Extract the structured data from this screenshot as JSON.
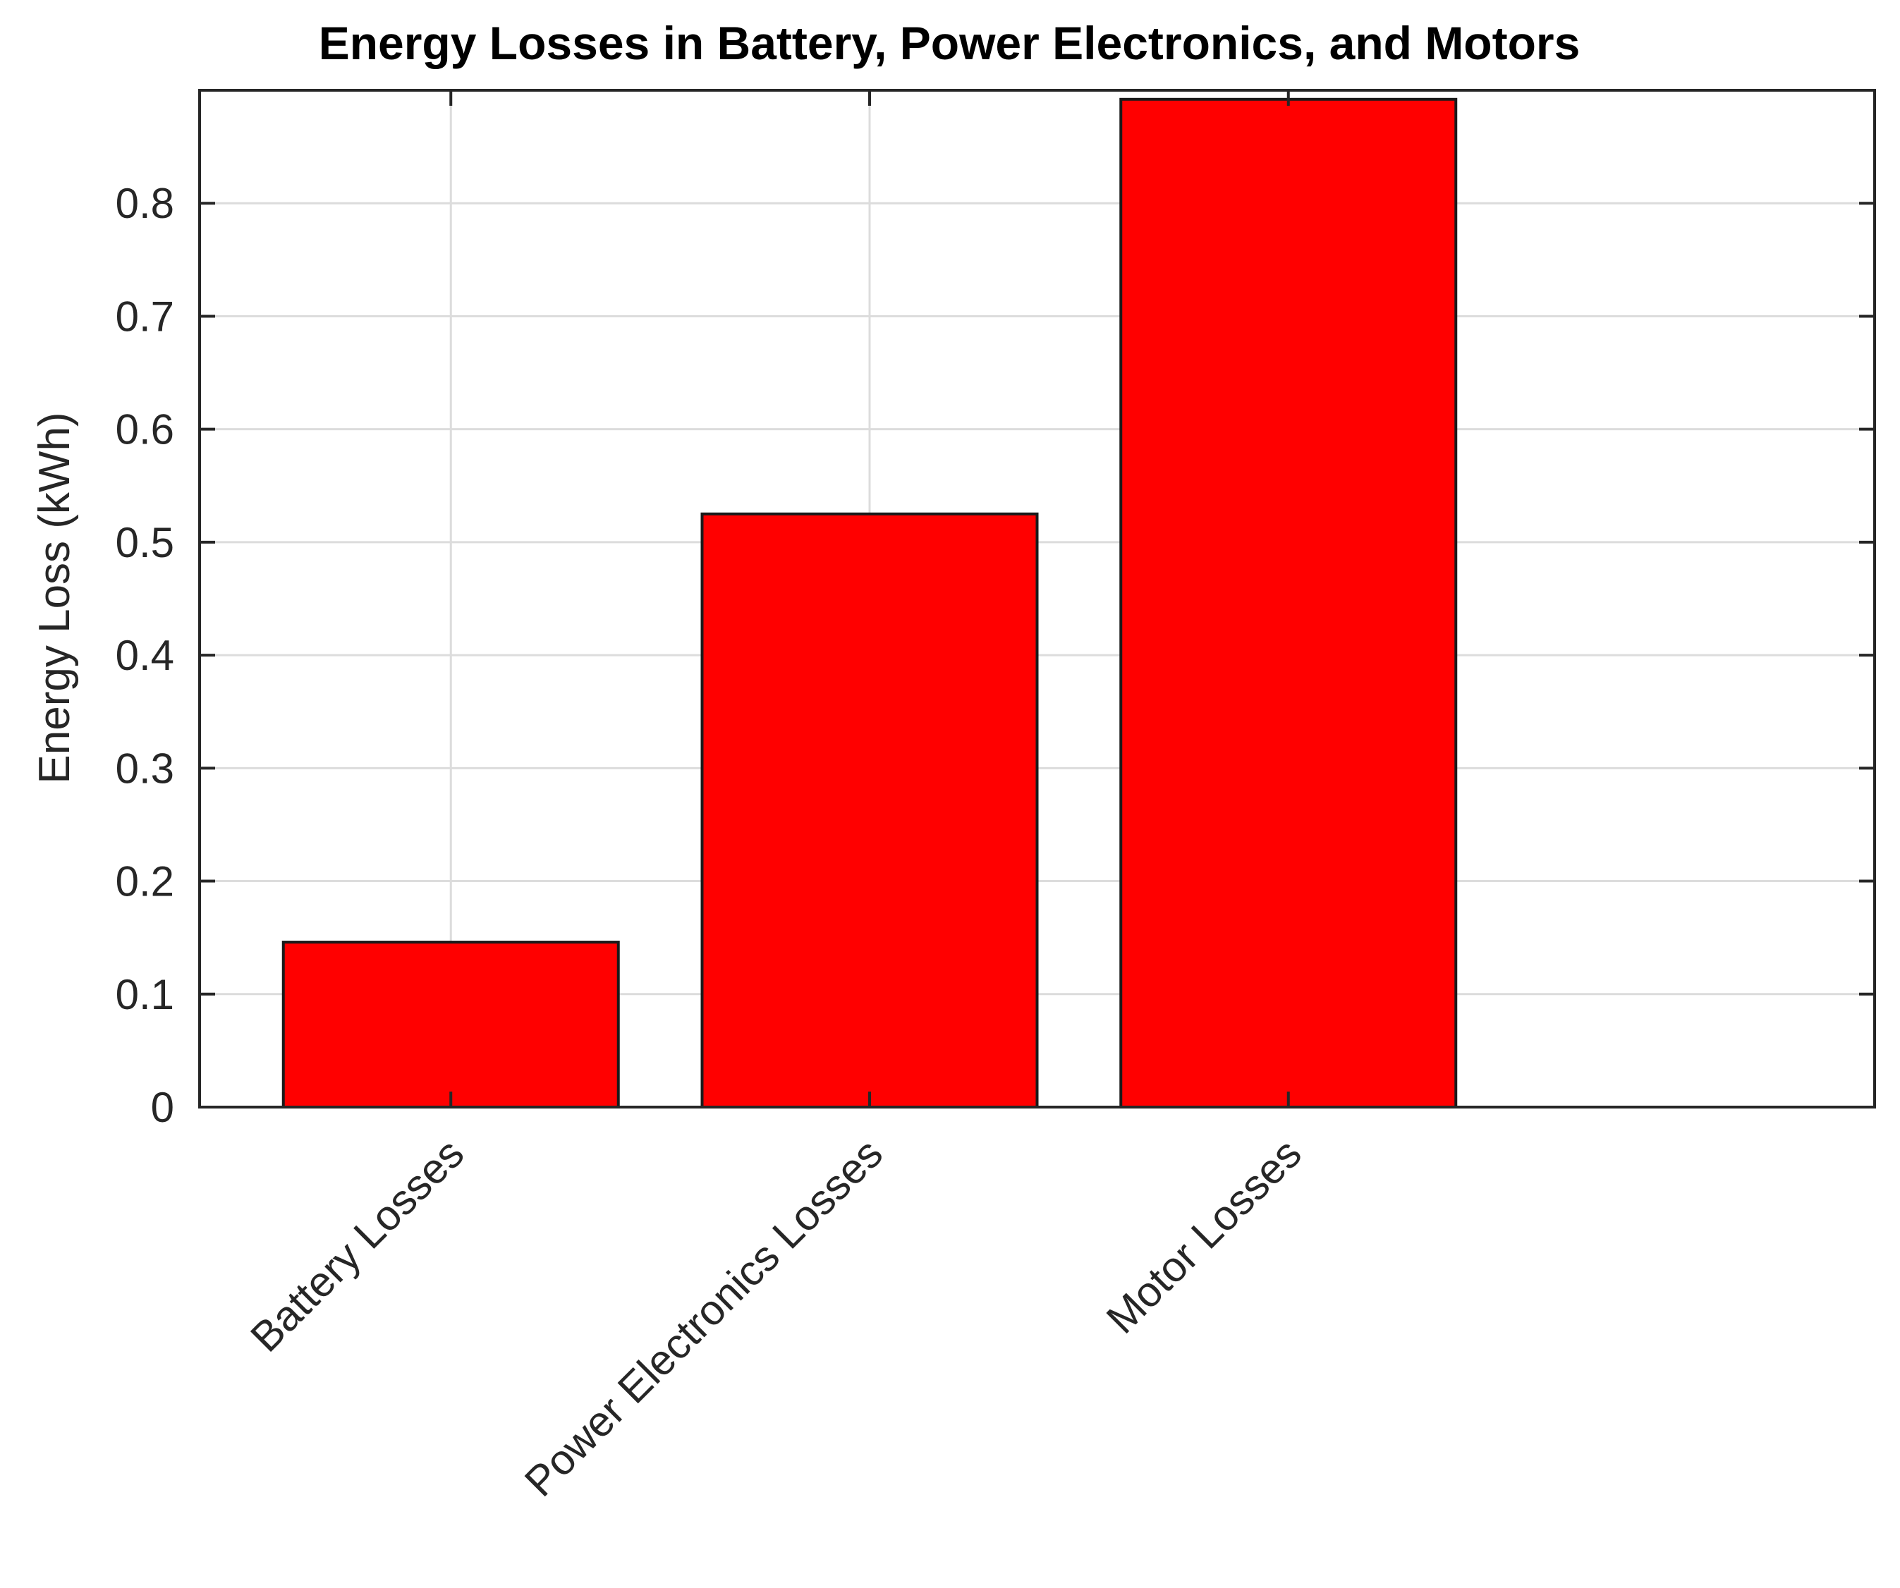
{
  "chart_data": {
    "type": "bar",
    "title": "Energy Losses in Battery, Power Electronics, and Motors",
    "xlabel": "",
    "ylabel": "Energy Loss (kWh)",
    "categories": [
      "Battery Losses",
      "Power Electronics Losses",
      "Motor Losses"
    ],
    "values": [
      0.146,
      0.525,
      0.892
    ],
    "ylim": [
      0,
      0.9
    ],
    "xlim": [
      0.4,
      4.4
    ],
    "yticks": [
      0,
      0.1,
      0.2,
      0.3,
      0.4,
      0.5,
      0.6,
      0.7,
      0.8
    ],
    "ytick_labels": [
      "0",
      "0.1",
      "0.2",
      "0.3",
      "0.4",
      "0.5",
      "0.6",
      "0.7",
      "0.8"
    ],
    "bar_color": "#ff0000",
    "edge_color": "#1a1a1a",
    "grid": true,
    "legend": null
  }
}
